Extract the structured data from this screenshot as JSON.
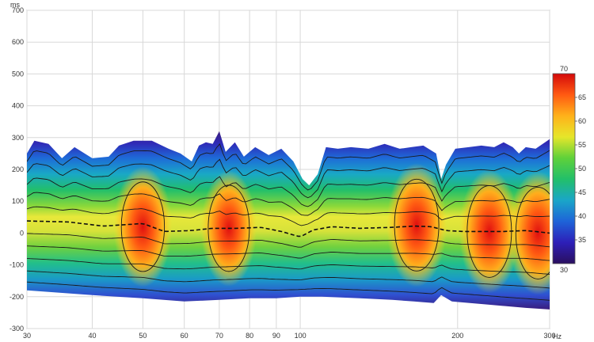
{
  "chart_data": {
    "type": "heatmap",
    "title": "",
    "x_unit": "Hz",
    "y_unit": "ms",
    "x_scale": "log",
    "xlim": [
      30,
      300
    ],
    "ylim": [
      -300,
      700
    ],
    "x_ticks": [
      30,
      40,
      50,
      60,
      70,
      80,
      90,
      100,
      200,
      300
    ],
    "x_tick_labels": [
      "30",
      "40",
      "50",
      "60",
      "70",
      "80",
      "90",
      "100",
      "200",
      "300"
    ],
    "y_ticks": [
      -300,
      -200,
      -100,
      0,
      100,
      200,
      300,
      400,
      500,
      600,
      700
    ],
    "y_tick_labels": [
      "-300",
      "-200",
      "-100",
      "0",
      "100",
      "200",
      "300",
      "400",
      "500",
      "600",
      "700"
    ],
    "grid": true,
    "colorbar": {
      "range": [
        30,
        70
      ],
      "ticks": [
        30,
        35,
        40,
        45,
        50,
        55,
        60,
        65,
        70
      ],
      "tick_labels": [
        "30",
        "35",
        "40",
        "45",
        "50",
        "55",
        "60",
        "65",
        "70"
      ],
      "placement": "right",
      "colors": [
        "#2a0f5e",
        "#2d1fb8",
        "#1e63d8",
        "#1aa6c8",
        "#22bf6a",
        "#5fd13a",
        "#e6e62a",
        "#ffb21a",
        "#ff5a12",
        "#d40a0a"
      ]
    },
    "envelope_top": [
      {
        "f": 30,
        "ms": 250
      },
      {
        "f": 31,
        "ms": 290
      },
      {
        "f": 33,
        "ms": 280
      },
      {
        "f": 35,
        "ms": 235
      },
      {
        "f": 37,
        "ms": 270
      },
      {
        "f": 40,
        "ms": 235
      },
      {
        "f": 43,
        "ms": 240
      },
      {
        "f": 45,
        "ms": 275
      },
      {
        "f": 48,
        "ms": 290
      },
      {
        "f": 52,
        "ms": 290
      },
      {
        "f": 56,
        "ms": 265
      },
      {
        "f": 59,
        "ms": 250
      },
      {
        "f": 62,
        "ms": 225
      },
      {
        "f": 64,
        "ms": 275
      },
      {
        "f": 66,
        "ms": 285
      },
      {
        "f": 68,
        "ms": 280
      },
      {
        "f": 70,
        "ms": 320
      },
      {
        "f": 72,
        "ms": 255
      },
      {
        "f": 75,
        "ms": 285
      },
      {
        "f": 78,
        "ms": 240
      },
      {
        "f": 82,
        "ms": 270
      },
      {
        "f": 87,
        "ms": 245
      },
      {
        "f": 92,
        "ms": 265
      },
      {
        "f": 97,
        "ms": 225
      },
      {
        "f": 101,
        "ms": 170
      },
      {
        "f": 104,
        "ms": 150
      },
      {
        "f": 108,
        "ms": 185
      },
      {
        "f": 112,
        "ms": 270
      },
      {
        "f": 118,
        "ms": 265
      },
      {
        "f": 125,
        "ms": 270
      },
      {
        "f": 135,
        "ms": 265
      },
      {
        "f": 145,
        "ms": 280
      },
      {
        "f": 155,
        "ms": 265
      },
      {
        "f": 163,
        "ms": 270
      },
      {
        "f": 172,
        "ms": 275
      },
      {
        "f": 182,
        "ms": 250
      },
      {
        "f": 186,
        "ms": 170
      },
      {
        "f": 190,
        "ms": 215
      },
      {
        "f": 198,
        "ms": 265
      },
      {
        "f": 210,
        "ms": 270
      },
      {
        "f": 222,
        "ms": 275
      },
      {
        "f": 235,
        "ms": 270
      },
      {
        "f": 245,
        "ms": 285
      },
      {
        "f": 255,
        "ms": 270
      },
      {
        "f": 262,
        "ms": 250
      },
      {
        "f": 270,
        "ms": 270
      },
      {
        "f": 282,
        "ms": 265
      },
      {
        "f": 294,
        "ms": 285
      },
      {
        "f": 300,
        "ms": 295
      }
    ],
    "envelope_bottom": [
      {
        "f": 30,
        "ms": -180
      },
      {
        "f": 40,
        "ms": -195
      },
      {
        "f": 50,
        "ms": -205
      },
      {
        "f": 60,
        "ms": -215
      },
      {
        "f": 70,
        "ms": -210
      },
      {
        "f": 80,
        "ms": -205
      },
      {
        "f": 90,
        "ms": -205
      },
      {
        "f": 100,
        "ms": -200
      },
      {
        "f": 110,
        "ms": -200
      },
      {
        "f": 130,
        "ms": -205
      },
      {
        "f": 150,
        "ms": -210
      },
      {
        "f": 165,
        "ms": -215
      },
      {
        "f": 180,
        "ms": -220
      },
      {
        "f": 186,
        "ms": -195
      },
      {
        "f": 195,
        "ms": -215
      },
      {
        "f": 230,
        "ms": -225
      },
      {
        "f": 270,
        "ms": -235
      },
      {
        "f": 300,
        "ms": -240
      }
    ],
    "ridge_centerline": [
      {
        "f": 30,
        "ms": 38
      },
      {
        "f": 36,
        "ms": 35
      },
      {
        "f": 42,
        "ms": 22
      },
      {
        "f": 50,
        "ms": 30
      },
      {
        "f": 55,
        "ms": 5
      },
      {
        "f": 62,
        "ms": 8
      },
      {
        "f": 68,
        "ms": 15
      },
      {
        "f": 76,
        "ms": 15
      },
      {
        "f": 84,
        "ms": 18
      },
      {
        "f": 92,
        "ms": 5
      },
      {
        "f": 100,
        "ms": -12
      },
      {
        "f": 106,
        "ms": 10
      },
      {
        "f": 115,
        "ms": 20
      },
      {
        "f": 130,
        "ms": 15
      },
      {
        "f": 150,
        "ms": 18
      },
      {
        "f": 165,
        "ms": 22
      },
      {
        "f": 178,
        "ms": 20
      },
      {
        "f": 190,
        "ms": 8
      },
      {
        "f": 205,
        "ms": 5
      },
      {
        "f": 225,
        "ms": 5
      },
      {
        "f": 245,
        "ms": 5
      },
      {
        "f": 270,
        "ms": 8
      },
      {
        "f": 300,
        "ms": 0
      }
    ],
    "peaks": [
      {
        "f": 50,
        "ms": 20,
        "level": 68
      },
      {
        "f": 73,
        "ms": 15,
        "level": 65
      },
      {
        "f": 167,
        "ms": 25,
        "level": 70
      },
      {
        "f": 230,
        "ms": 5,
        "level": 70
      },
      {
        "f": 285,
        "ms": 0,
        "level": 70
      }
    ]
  }
}
